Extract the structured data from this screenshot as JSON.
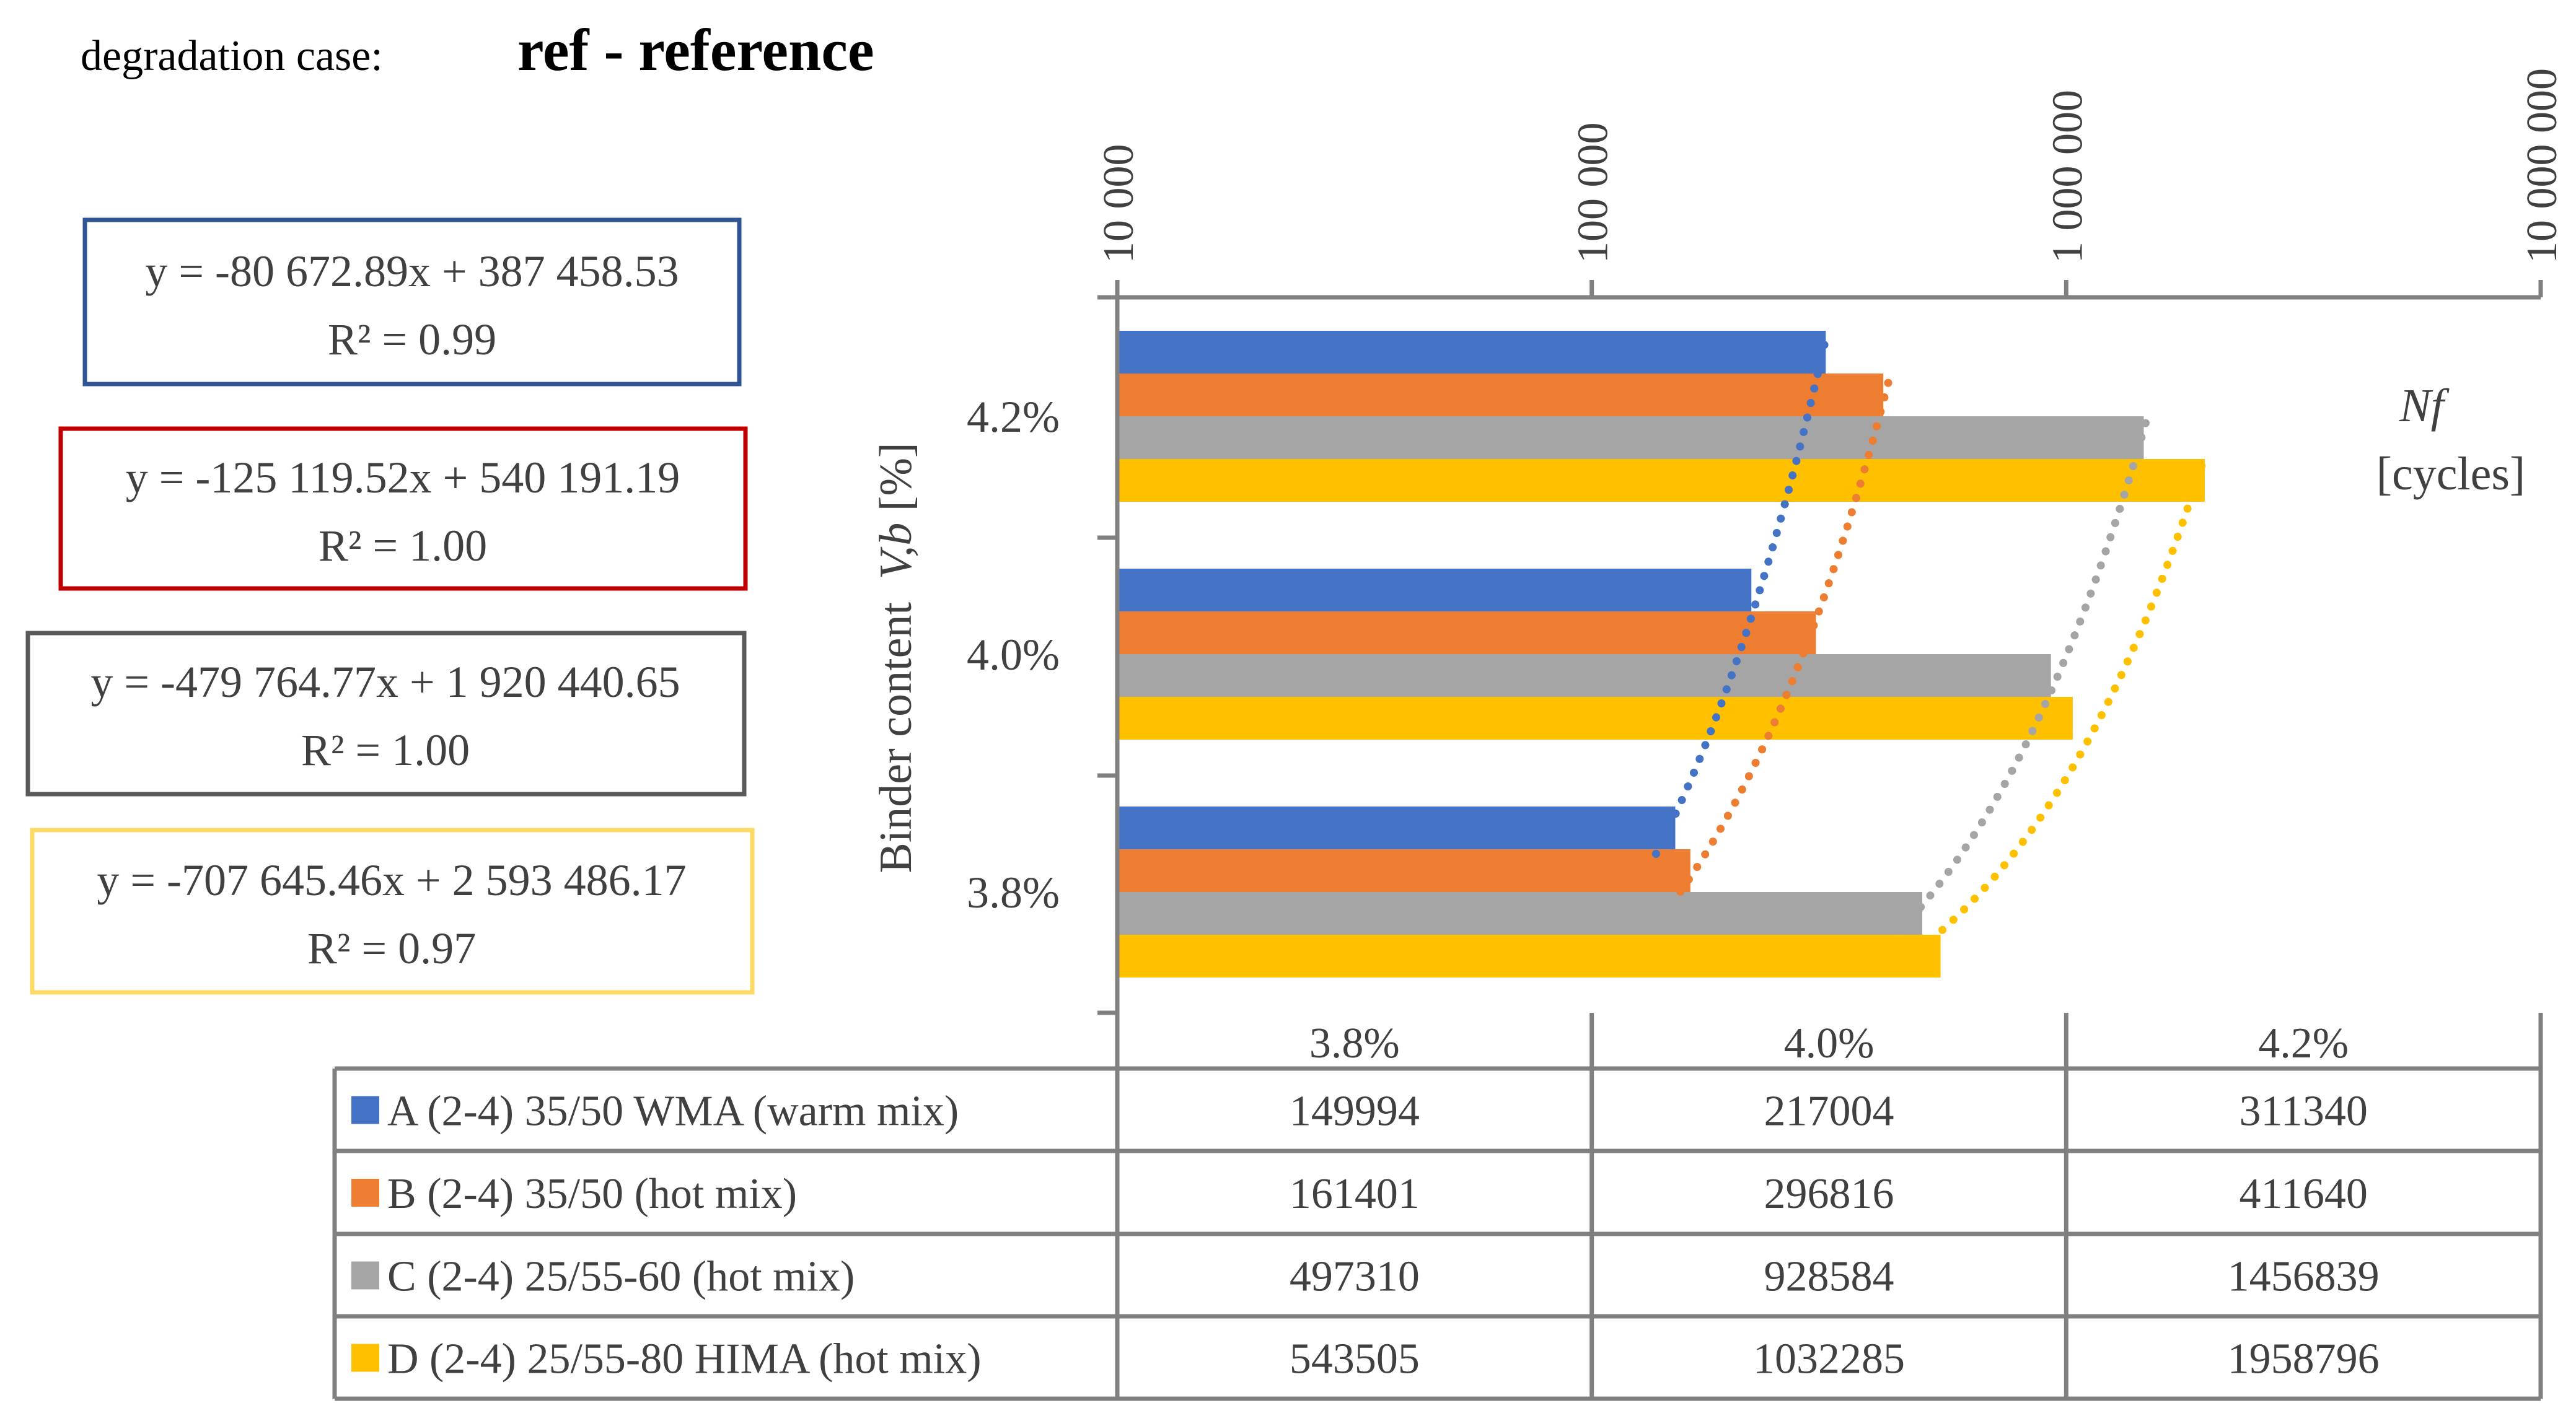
{
  "header": {
    "label": "degradation case:",
    "case": "ref - reference"
  },
  "equations": [
    {
      "eq": "y = -80 672.89x + 387 458.53",
      "r2": "R² = 0.99",
      "color": "#2F5597"
    },
    {
      "eq": "y = -125 119.52x + 540 191.19",
      "r2": "R² = 1.00",
      "color": "#C00000"
    },
    {
      "eq": "y = -479 764.77x + 1 920 440.65",
      "r2": "R² = 1.00",
      "color": "#595959"
    },
    {
      "eq": "y = -707 645.46x + 2 593 486.17",
      "r2": "R² = 0.97",
      "color": "#FFD966"
    }
  ],
  "chart_data": {
    "type": "bar",
    "orientation": "horizontal",
    "x_scale": "log",
    "xlim": [
      10000,
      10000000
    ],
    "x_ticks": [
      10000,
      100000,
      1000000,
      10000000
    ],
    "x_tick_labels": [
      "10 000",
      "100 000",
      "1 000 000",
      "10 000 000"
    ],
    "xlabel_italic": "Nf",
    "xlabel_unit": "[cycles]",
    "ylabel_prefix": "Binder content",
    "ylabel_var": "V,b",
    "ylabel_unit": "[%]",
    "categories": [
      "3.8%",
      "4.0%",
      "4.2%"
    ],
    "category_values": [
      3.8,
      4.0,
      4.2
    ],
    "series": [
      {
        "name": "A (2-4) 35/50 WMA (warm mix)",
        "color": "#4472C4",
        "values": [
          149994,
          217004,
          311340
        ],
        "display": [
          "149994",
          "217004",
          "311340"
        ]
      },
      {
        "name": "B (2-4) 35/50 (hot mix)",
        "color": "#ED7D31",
        "values": [
          161401,
          296816,
          411640
        ],
        "display": [
          "161401",
          "296816",
          "411640"
        ]
      },
      {
        "name": "C (2-4) 25/55-60 (hot mix)",
        "color": "#A5A5A5",
        "values": [
          497310,
          928584,
          1456839
        ],
        "display": [
          "497310",
          "928584",
          "1456839"
        ]
      },
      {
        "name": "D (2-4) 25/55-80 HIMA (hot mix)",
        "color": "#FFC000",
        "values": [
          543505,
          1032285,
          1958796
        ],
        "display": [
          "543505",
          "1032285",
          "1958796"
        ]
      }
    ],
    "trendlines": "dotted, per series"
  }
}
